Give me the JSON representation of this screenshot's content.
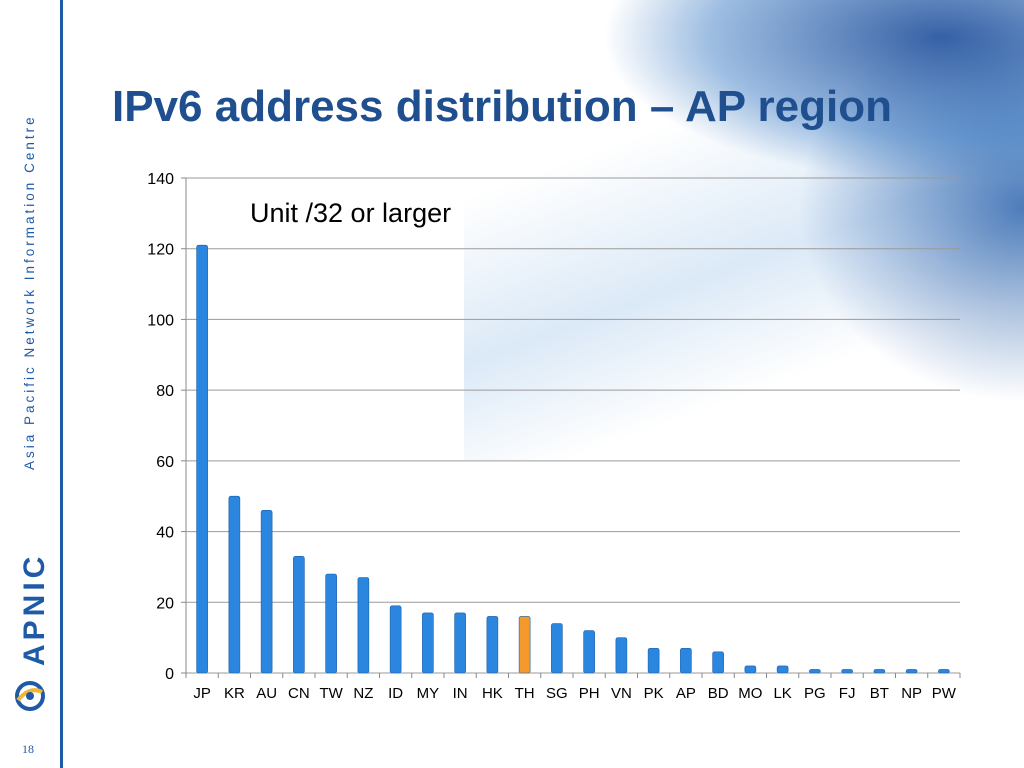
{
  "slide": {
    "title": "IPv6 address distribution – AP region",
    "org_name": "Asia Pacific Network Information Centre",
    "brand": "APNIC",
    "page_number": "18",
    "accent_color": "#1f5aa6"
  },
  "chart_data": {
    "type": "bar",
    "annotation": "Unit /32 or larger",
    "categories": [
      "JP",
      "KR",
      "AU",
      "CN",
      "TW",
      "NZ",
      "ID",
      "MY",
      "IN",
      "HK",
      "TH",
      "SG",
      "PH",
      "VN",
      "PK",
      "AP",
      "BD",
      "MO",
      "LK",
      "PG",
      "FJ",
      "BT",
      "NP",
      "PW"
    ],
    "values": [
      121,
      50,
      46,
      33,
      28,
      27,
      19,
      17,
      17,
      16,
      16,
      14,
      12,
      10,
      7,
      7,
      6,
      2,
      2,
      1,
      1,
      1,
      1,
      1
    ],
    "highlight_category": "TH",
    "bar_color": "#2a86de",
    "highlight_color": "#f59a2a",
    "ylim": [
      0,
      140
    ],
    "yticks": [
      0,
      20,
      40,
      60,
      80,
      100,
      120,
      140
    ],
    "grid": true,
    "xlabel": "",
    "ylabel": ""
  }
}
